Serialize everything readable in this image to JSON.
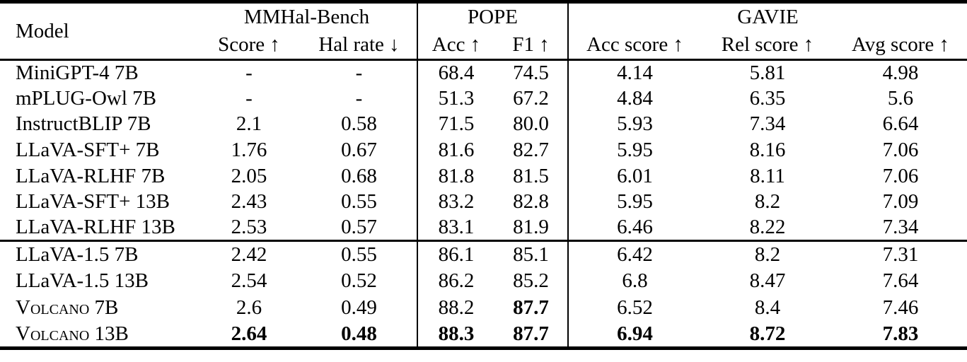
{
  "page": {
    "background": "#ffffff",
    "ink": "#000000"
  },
  "table": {
    "model_header": "Model",
    "groups": [
      {
        "label": "MMHal-Bench",
        "span": 2
      },
      {
        "label": "POPE",
        "span": 2
      },
      {
        "label": "GAVIE",
        "span": 3
      }
    ],
    "columns": [
      {
        "label": "Score ↑"
      },
      {
        "label": "Hal rate ↓"
      },
      {
        "label": "Acc ↑"
      },
      {
        "label": "F1 ↑"
      },
      {
        "label": "Acc score ↑"
      },
      {
        "label": "Rel score ↑"
      },
      {
        "label": "Avg score ↑"
      }
    ],
    "sections": [
      {
        "rows": [
          {
            "model": "MiniGPT-4 7B",
            "smallcaps": false,
            "values": [
              "-",
              "-",
              "68.4",
              "74.5",
              "4.14",
              "5.81",
              "4.98"
            ],
            "bold": [
              false,
              false,
              false,
              false,
              false,
              false,
              false
            ]
          },
          {
            "model": "mPLUG-Owl 7B",
            "smallcaps": false,
            "values": [
              "-",
              "-",
              "51.3",
              "67.2",
              "4.84",
              "6.35",
              "5.6"
            ],
            "bold": [
              false,
              false,
              false,
              false,
              false,
              false,
              false
            ]
          },
          {
            "model": "InstructBLIP 7B",
            "smallcaps": false,
            "values": [
              "2.1",
              "0.58",
              "71.5",
              "80.0",
              "5.93",
              "7.34",
              "6.64"
            ],
            "bold": [
              false,
              false,
              false,
              false,
              false,
              false,
              false
            ]
          },
          {
            "model": "LLaVA-SFT+ 7B",
            "smallcaps": false,
            "values": [
              "1.76",
              "0.67",
              "81.6",
              "82.7",
              "5.95",
              "8.16",
              "7.06"
            ],
            "bold": [
              false,
              false,
              false,
              false,
              false,
              false,
              false
            ]
          },
          {
            "model": "LLaVA-RLHF 7B",
            "smallcaps": false,
            "values": [
              "2.05",
              "0.68",
              "81.8",
              "81.5",
              "6.01",
              "8.11",
              "7.06"
            ],
            "bold": [
              false,
              false,
              false,
              false,
              false,
              false,
              false
            ]
          },
          {
            "model": "LLaVA-SFT+ 13B",
            "smallcaps": false,
            "values": [
              "2.43",
              "0.55",
              "83.2",
              "82.8",
              "5.95",
              "8.2",
              "7.09"
            ],
            "bold": [
              false,
              false,
              false,
              false,
              false,
              false,
              false
            ]
          },
          {
            "model": "LLaVA-RLHF 13B",
            "smallcaps": false,
            "values": [
              "2.53",
              "0.57",
              "83.1",
              "81.9",
              "6.46",
              "8.22",
              "7.34"
            ],
            "bold": [
              false,
              false,
              false,
              false,
              false,
              false,
              false
            ]
          }
        ]
      },
      {
        "rows": [
          {
            "model": "LLaVA-1.5 7B",
            "smallcaps": false,
            "values": [
              "2.42",
              "0.55",
              "86.1",
              "85.1",
              "6.42",
              "8.2",
              "7.31"
            ],
            "bold": [
              false,
              false,
              false,
              false,
              false,
              false,
              false
            ]
          },
          {
            "model": "LLaVA-1.5 13B",
            "smallcaps": false,
            "values": [
              "2.54",
              "0.52",
              "86.2",
              "85.2",
              "6.8",
              "8.47",
              "7.64"
            ],
            "bold": [
              false,
              false,
              false,
              false,
              false,
              false,
              false
            ]
          },
          {
            "model": "Volcano 7B",
            "smallcaps": true,
            "values": [
              "2.6",
              "0.49",
              "88.2",
              "87.7",
              "6.52",
              "8.4",
              "7.46"
            ],
            "bold": [
              false,
              false,
              false,
              true,
              false,
              false,
              false
            ]
          },
          {
            "model": "Volcano 13B",
            "smallcaps": true,
            "values": [
              "2.64",
              "0.48",
              "88.3",
              "87.7",
              "6.94",
              "8.72",
              "7.83"
            ],
            "bold": [
              true,
              true,
              true,
              true,
              true,
              true,
              true
            ]
          }
        ]
      }
    ]
  }
}
